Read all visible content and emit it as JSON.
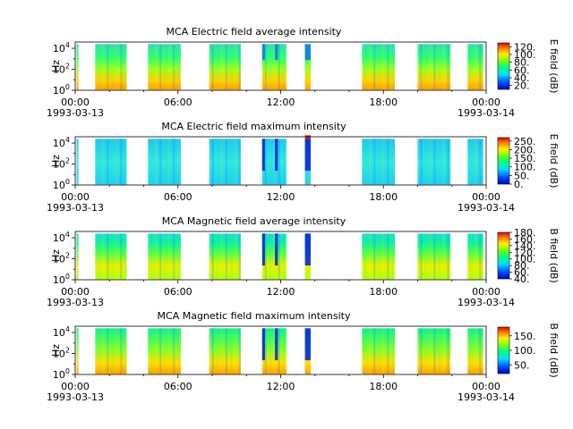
{
  "figure": {
    "time_axis": {
      "start": "1993-03-13T00:00",
      "end": "1993-03-14T00:00",
      "tick_labels": [
        "00:00",
        "06:00",
        "12:00",
        "18:00",
        "00:00"
      ],
      "date_labels": [
        "1993-03-13",
        "1993-03-14"
      ]
    }
  },
  "chart_data": [
    {
      "type": "heatmap",
      "title": "MCA  Electric field average intensity",
      "ylabel": "Hz",
      "y_scale": "log",
      "y_tick_labels": [
        "10^0",
        "10^2",
        "10^4"
      ],
      "colorbar": {
        "label": "E field (dB)",
        "ticks": [
          "20.",
          "40.",
          "60.",
          "80.",
          "100.",
          "120."
        ],
        "range": [
          10,
          130
        ]
      },
      "data_time_segments": [
        [
          "00:05",
          "00:05"
        ],
        [
          "01:10",
          "03:00"
        ],
        [
          "04:15",
          "06:10"
        ],
        [
          "07:50",
          "09:40"
        ],
        [
          "10:55",
          "12:20"
        ],
        [
          "13:25",
          "13:45"
        ],
        [
          "16:45",
          "18:40"
        ],
        [
          "20:00",
          "21:55"
        ],
        [
          "22:55",
          "23:50"
        ]
      ]
    },
    {
      "type": "heatmap",
      "title": "MCA  Electric field maximum intensity",
      "ylabel": "Hz",
      "y_scale": "log",
      "y_tick_labels": [
        "10^0",
        "10^2",
        "10^4"
      ],
      "colorbar": {
        "label": "E field (dB)",
        "ticks": [
          "0.",
          "50.",
          "100.",
          "150.",
          "200.",
          "250."
        ],
        "range": [
          0,
          270
        ]
      },
      "data_time_segments": [
        [
          "00:05",
          "00:05"
        ],
        [
          "01:10",
          "03:00"
        ],
        [
          "04:15",
          "06:10"
        ],
        [
          "07:50",
          "09:40"
        ],
        [
          "10:55",
          "12:20"
        ],
        [
          "13:25",
          "13:45"
        ],
        [
          "16:45",
          "18:40"
        ],
        [
          "20:00",
          "21:55"
        ],
        [
          "22:55",
          "23:50"
        ]
      ]
    },
    {
      "type": "heatmap",
      "title": "MCA  Magnetic field average intensity",
      "ylabel": "Hz",
      "y_scale": "log",
      "y_tick_labels": [
        "10^0",
        "10^2",
        "10^4"
      ],
      "colorbar": {
        "label": "B field (dB)",
        "ticks": [
          "40.",
          "60.",
          "80.",
          "100.",
          "120.",
          "140.",
          "160.",
          "180."
        ],
        "range": [
          40,
          180
        ]
      },
      "data_time_segments": [
        [
          "00:05",
          "00:05"
        ],
        [
          "01:10",
          "03:00"
        ],
        [
          "04:15",
          "06:10"
        ],
        [
          "07:50",
          "09:40"
        ],
        [
          "10:55",
          "12:20"
        ],
        [
          "13:25",
          "13:45"
        ],
        [
          "16:45",
          "18:40"
        ],
        [
          "20:00",
          "21:55"
        ],
        [
          "22:55",
          "23:50"
        ]
      ]
    },
    {
      "type": "heatmap",
      "title": "MCA  Magnetic field maximum intensity",
      "ylabel": "Hz",
      "y_scale": "log",
      "y_tick_labels": [
        "10^0",
        "10^2",
        "10^4"
      ],
      "colorbar": {
        "label": "B field (dB)",
        "ticks": [
          "50.",
          "100.",
          "150."
        ],
        "range": [
          20,
          180
        ]
      },
      "data_time_segments": [
        [
          "00:05",
          "00:05"
        ],
        [
          "01:10",
          "03:00"
        ],
        [
          "04:15",
          "06:10"
        ],
        [
          "07:50",
          "09:40"
        ],
        [
          "10:55",
          "12:20"
        ],
        [
          "13:25",
          "13:45"
        ],
        [
          "16:45",
          "18:40"
        ],
        [
          "20:00",
          "21:55"
        ],
        [
          "22:55",
          "23:50"
        ]
      ]
    }
  ]
}
